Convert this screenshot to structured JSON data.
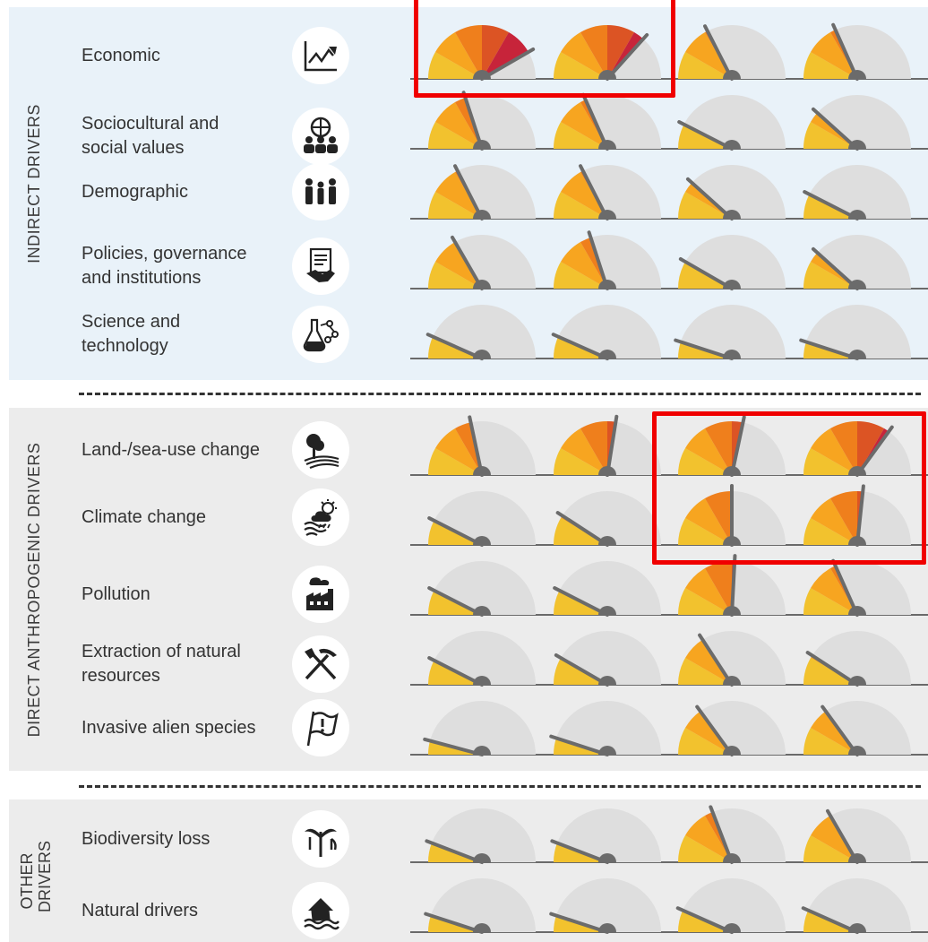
{
  "sections": [
    {
      "id": "indirect",
      "label": "INDIRECT DRIVERS"
    },
    {
      "id": "direct",
      "label": "DIRECT ANTHROPOGENIC DRIVERS"
    },
    {
      "id": "other",
      "label": "OTHER DRIVERS"
    }
  ],
  "rows": [
    {
      "label_lines": [
        "Economic"
      ],
      "icon": "line-chart-icon",
      "levels": [
        5,
        4.4,
        2.1,
        2.2
      ]
    },
    {
      "label_lines": [
        "Sociocultural and",
        "social values"
      ],
      "icon": "people-group-icon",
      "levels": [
        2.4,
        2.2,
        0.9,
        1.4
      ]
    },
    {
      "label_lines": [
        "Demographic"
      ],
      "icon": "family-icon",
      "levels": [
        2.1,
        2.1,
        1.4,
        0.9
      ]
    },
    {
      "label_lines": [
        "Policies, governance",
        "and institutions"
      ],
      "icon": "handshake-document-icon",
      "levels": [
        2.0,
        2.4,
        1.0,
        1.4
      ]
    },
    {
      "label_lines": [
        "Science and",
        "technology"
      ],
      "icon": "lab-flask-icon",
      "levels": [
        0.8,
        0.8,
        0.6,
        0.6
      ]
    },
    {
      "label_lines": [
        "Land-/sea-use change"
      ],
      "icon": "tree-land-icon",
      "levels": [
        2.6,
        3.3,
        3.4,
        4.2
      ]
    },
    {
      "label_lines": [
        "Climate change"
      ],
      "icon": "weather-waves-icon",
      "levels": [
        0.9,
        1.1,
        3.0,
        3.2
      ]
    },
    {
      "label_lines": [
        "Pollution"
      ],
      "icon": "factory-icon",
      "levels": [
        0.9,
        0.9,
        3.1,
        2.2
      ]
    },
    {
      "label_lines": [
        "Extraction of natural",
        "resources"
      ],
      "icon": "pickaxe-icon",
      "levels": [
        0.9,
        1.0,
        1.9,
        1.1
      ]
    },
    {
      "label_lines": [
        "Invasive alien species"
      ],
      "icon": "warning-flag-icon",
      "levels": [
        0.5,
        0.6,
        1.8,
        1.8
      ]
    },
    {
      "label_lines": [
        "Biodiversity loss"
      ],
      "icon": "plant-icon",
      "levels": [
        0.7,
        0.7,
        2.3,
        2.0
      ]
    },
    {
      "label_lines": [
        "Natural drivers"
      ],
      "icon": "flooded-house-icon",
      "levels": [
        0.6,
        0.6,
        0.8,
        0.8
      ]
    }
  ],
  "level_colors": [
    "#f2c22e",
    "#f7a520",
    "#ef7f1c",
    "#dc5424",
    "#c7243a",
    "#86162a"
  ],
  "track_color": "#dedede",
  "needle_color": "#6b6b6b"
}
